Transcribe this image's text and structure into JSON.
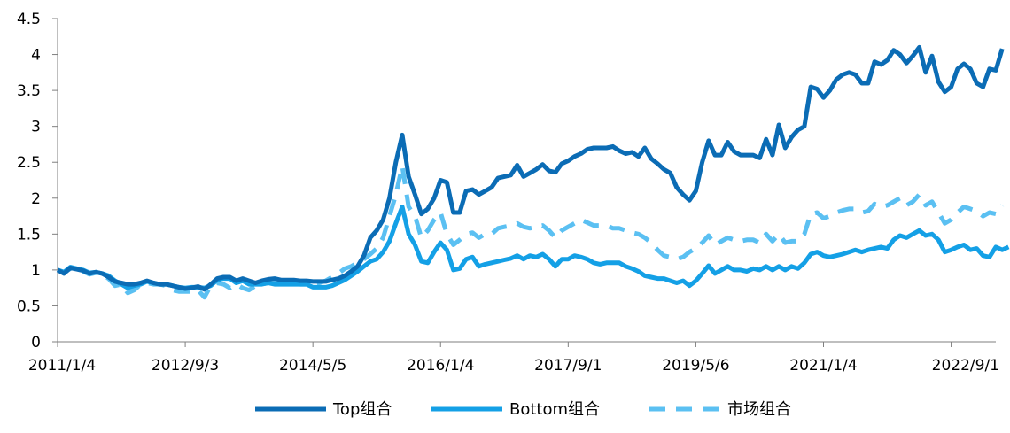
{
  "chart_data": {
    "type": "line",
    "title": "",
    "xlabel": "",
    "ylabel": "",
    "ylim": [
      0,
      4.5
    ],
    "y_ticks": [
      "0",
      "0.5",
      "1",
      "1.5",
      "2",
      "2.5",
      "3",
      "3.5",
      "4",
      "4.5"
    ],
    "x_ticks": [
      "2011/1/4",
      "2012/9/3",
      "2014/5/5",
      "2016/1/4",
      "2017/9/1",
      "2019/5/6",
      "2021/1/4",
      "2022/9/1"
    ],
    "x_tick_positions": [
      0,
      20,
      40,
      60,
      80,
      100,
      120,
      140
    ],
    "x_range": [
      0,
      147
    ],
    "grid": false,
    "legend_position": "bottom",
    "series": [
      {
        "name": "Top组合",
        "color": "#0b6cb5",
        "style": "solid",
        "values": [
          1.0,
          0.95,
          1.03,
          1.01,
          0.99,
          0.95,
          0.97,
          0.95,
          0.9,
          0.84,
          0.82,
          0.8,
          0.8,
          0.82,
          0.85,
          0.82,
          0.8,
          0.8,
          0.78,
          0.76,
          0.74,
          0.75,
          0.77,
          0.73,
          0.8,
          0.88,
          0.9,
          0.9,
          0.85,
          0.88,
          0.85,
          0.82,
          0.85,
          0.87,
          0.88,
          0.86,
          0.86,
          0.86,
          0.85,
          0.85,
          0.84,
          0.84,
          0.84,
          0.86,
          0.88,
          0.92,
          0.98,
          1.05,
          1.2,
          1.45,
          1.55,
          1.7,
          2.0,
          2.5,
          2.88,
          2.3,
          2.05,
          1.78,
          1.85,
          2.0,
          2.25,
          2.22,
          1.8,
          1.8,
          2.1,
          2.12,
          2.05,
          2.1,
          2.15,
          2.28,
          2.3,
          2.32,
          2.46,
          2.3,
          2.35,
          2.4,
          2.47,
          2.38,
          2.36,
          2.48,
          2.52,
          2.58,
          2.62,
          2.68,
          2.7,
          2.7,
          2.7,
          2.72,
          2.66,
          2.62,
          2.64,
          2.58,
          2.7,
          2.55,
          2.48,
          2.4,
          2.35,
          2.15,
          2.05,
          1.97,
          2.1,
          2.5,
          2.8,
          2.6,
          2.6,
          2.78,
          2.65,
          2.6,
          2.6,
          2.6,
          2.56,
          2.82,
          2.6,
          3.02,
          2.7,
          2.85,
          2.95,
          3.0,
          3.55,
          3.52,
          3.4,
          3.5,
          3.65,
          3.72,
          3.75,
          3.72,
          3.6,
          3.6,
          3.9,
          3.86,
          3.92,
          4.06,
          4.0,
          3.88,
          3.98,
          4.1,
          3.75,
          3.98,
          3.62,
          3.48,
          3.55,
          3.8,
          3.87,
          3.8,
          3.6,
          3.55,
          3.8,
          3.78,
          4.08
        ]
      },
      {
        "name": "Bottom组合",
        "color": "#14a0e6",
        "style": "solid",
        "values": [
          1.0,
          0.97,
          1.04,
          1.02,
          1.0,
          0.96,
          0.97,
          0.95,
          0.92,
          0.85,
          0.8,
          0.75,
          0.78,
          0.8,
          0.84,
          0.82,
          0.8,
          0.8,
          0.78,
          0.76,
          0.75,
          0.76,
          0.76,
          0.75,
          0.78,
          0.86,
          0.88,
          0.88,
          0.82,
          0.85,
          0.8,
          0.8,
          0.8,
          0.82,
          0.8,
          0.8,
          0.8,
          0.8,
          0.8,
          0.8,
          0.76,
          0.76,
          0.76,
          0.78,
          0.82,
          0.86,
          0.92,
          0.98,
          1.05,
          1.12,
          1.15,
          1.25,
          1.4,
          1.65,
          1.88,
          1.5,
          1.35,
          1.12,
          1.1,
          1.25,
          1.38,
          1.28,
          1.0,
          1.02,
          1.15,
          1.18,
          1.05,
          1.08,
          1.1,
          1.12,
          1.14,
          1.16,
          1.2,
          1.15,
          1.2,
          1.18,
          1.22,
          1.15,
          1.05,
          1.15,
          1.15,
          1.2,
          1.18,
          1.15,
          1.1,
          1.08,
          1.1,
          1.1,
          1.1,
          1.05,
          1.02,
          0.98,
          0.92,
          0.9,
          0.88,
          0.88,
          0.85,
          0.82,
          0.85,
          0.78,
          0.85,
          0.95,
          1.06,
          0.95,
          1.0,
          1.05,
          1.0,
          1.0,
          0.98,
          1.02,
          1.0,
          1.05,
          1.0,
          1.05,
          1.0,
          1.05,
          1.02,
          1.1,
          1.22,
          1.25,
          1.2,
          1.18,
          1.2,
          1.22,
          1.25,
          1.28,
          1.25,
          1.28,
          1.3,
          1.32,
          1.3,
          1.42,
          1.48,
          1.45,
          1.5,
          1.55,
          1.48,
          1.5,
          1.42,
          1.25,
          1.28,
          1.32,
          1.35,
          1.28,
          1.3,
          1.2,
          1.18,
          1.32,
          1.28,
          1.32
        ]
      },
      {
        "name": "市场组合",
        "color": "#5bc0f2",
        "style": "dashed",
        "values": [
          1.0,
          0.96,
          1.02,
          1.0,
          0.98,
          0.94,
          0.96,
          0.93,
          0.88,
          0.78,
          0.8,
          0.68,
          0.72,
          0.8,
          0.82,
          0.8,
          0.8,
          0.78,
          0.72,
          0.7,
          0.7,
          0.7,
          0.72,
          0.62,
          0.78,
          0.82,
          0.8,
          0.75,
          0.8,
          0.75,
          0.72,
          0.78,
          0.8,
          0.82,
          0.84,
          0.83,
          0.82,
          0.82,
          0.8,
          0.8,
          0.8,
          0.82,
          0.85,
          0.9,
          0.95,
          1.02,
          1.05,
          1.1,
          1.15,
          1.22,
          1.3,
          1.45,
          1.75,
          2.05,
          2.45,
          1.88,
          1.75,
          1.45,
          1.55,
          1.7,
          1.8,
          1.5,
          1.35,
          1.42,
          1.5,
          1.52,
          1.45,
          1.5,
          1.5,
          1.58,
          1.6,
          1.62,
          1.65,
          1.6,
          1.58,
          1.6,
          1.62,
          1.55,
          1.45,
          1.55,
          1.6,
          1.65,
          1.7,
          1.66,
          1.62,
          1.62,
          1.62,
          1.58,
          1.58,
          1.55,
          1.52,
          1.5,
          1.45,
          1.38,
          1.28,
          1.2,
          1.18,
          1.15,
          1.18,
          1.25,
          1.3,
          1.38,
          1.48,
          1.35,
          1.4,
          1.45,
          1.42,
          1.4,
          1.42,
          1.42,
          1.38,
          1.5,
          1.4,
          1.5,
          1.38,
          1.4,
          1.4,
          1.5,
          1.78,
          1.8,
          1.72,
          1.75,
          1.8,
          1.83,
          1.85,
          1.85,
          1.8,
          1.82,
          1.92,
          1.88,
          1.9,
          1.95,
          2.0,
          1.9,
          1.95,
          2.05,
          1.9,
          1.95,
          1.8,
          1.65,
          1.7,
          1.8,
          1.88,
          1.85,
          1.82,
          1.75,
          1.8,
          1.78,
          1.9
        ]
      }
    ]
  }
}
